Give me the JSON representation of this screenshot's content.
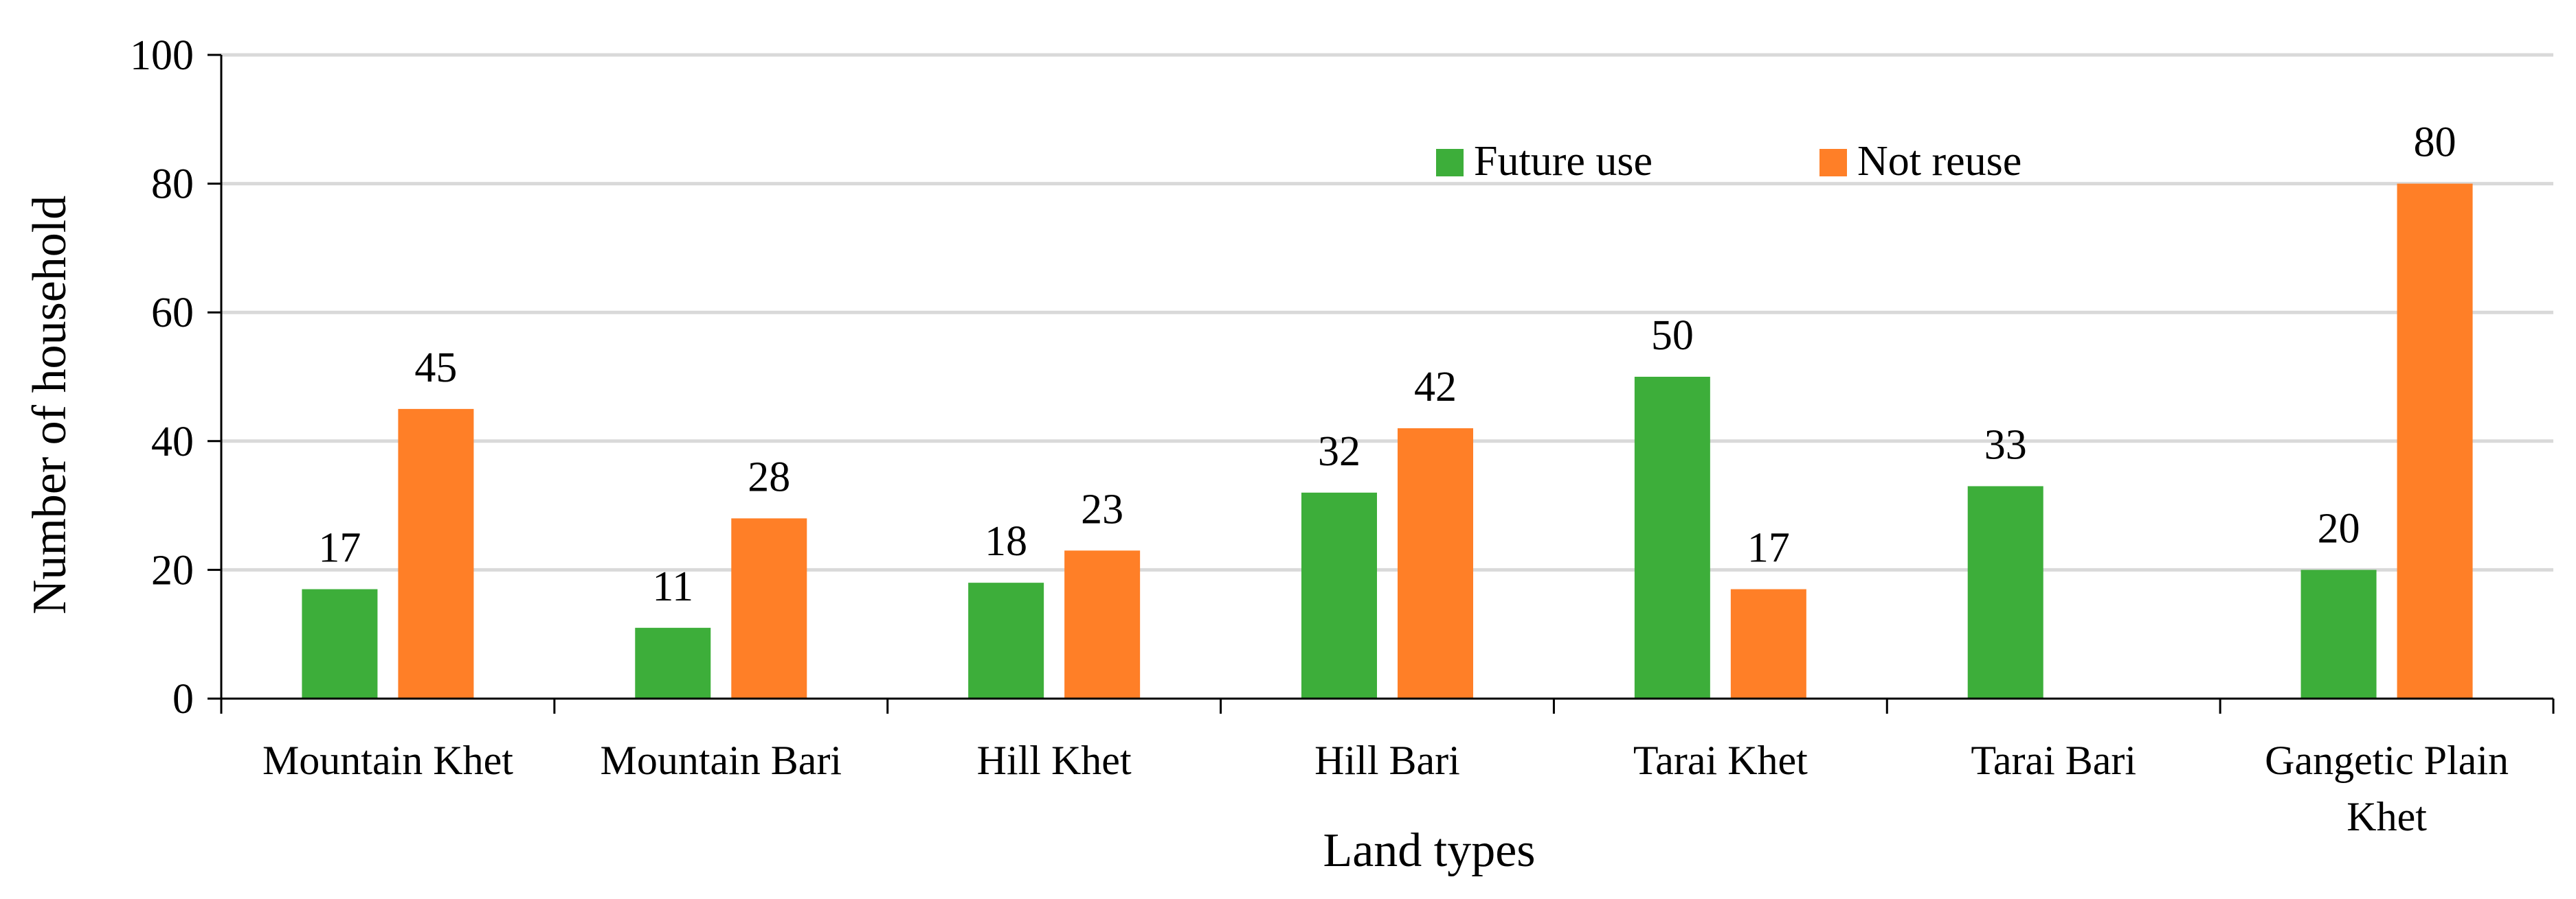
{
  "chart_data": {
    "type": "bar",
    "title": "",
    "xlabel": "Land types",
    "ylabel": "Number of household",
    "ylim": [
      0,
      100
    ],
    "yticks": [
      0,
      20,
      40,
      60,
      80,
      100
    ],
    "grid": true,
    "legend_position": "top-right",
    "categories": [
      [
        "Mountain Khet"
      ],
      [
        "Mountain Bari"
      ],
      [
        "Hill Khet"
      ],
      [
        "Hill Bari"
      ],
      [
        "Tarai Khet"
      ],
      [
        "Tarai Bari"
      ],
      [
        "Gangetic Plain",
        "Khet"
      ]
    ],
    "series": [
      {
        "name": "Future use",
        "color": "#3DAE3A",
        "values": [
          17,
          11,
          18,
          32,
          50,
          33,
          20
        ]
      },
      {
        "name": "Not reuse",
        "color": "#FF7F27",
        "values": [
          45,
          28,
          23,
          42,
          17,
          null,
          80
        ]
      }
    ]
  }
}
